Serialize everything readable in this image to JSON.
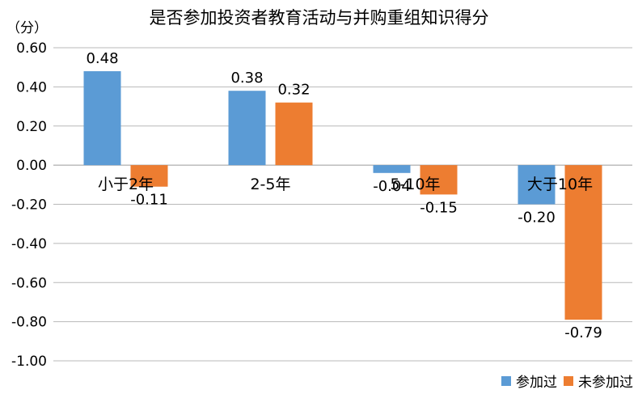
{
  "chart_data": {
    "type": "bar",
    "title": "是否参加投资者教育活动与并购重组知识得分",
    "ylabel": "（分）",
    "xlabel": "",
    "categories": [
      "小于2年",
      "2-5年",
      "5-10年",
      "大于10年"
    ],
    "series": [
      {
        "name": "参加过",
        "values": [
          0.48,
          0.38,
          -0.04,
          -0.2
        ],
        "color": "#5b9bd5"
      },
      {
        "name": "未参加过",
        "values": [
          -0.11,
          0.32,
          -0.15,
          -0.79
        ],
        "color": "#ed7d31"
      }
    ],
    "ylim": [
      -1.0,
      0.6
    ],
    "yticks": [
      "0.60",
      "0.40",
      "0.20",
      "0.00",
      "-0.20",
      "-0.40",
      "-0.60",
      "-0.80",
      "-1.00"
    ],
    "grid": true,
    "legend_position": "bottom-right"
  }
}
